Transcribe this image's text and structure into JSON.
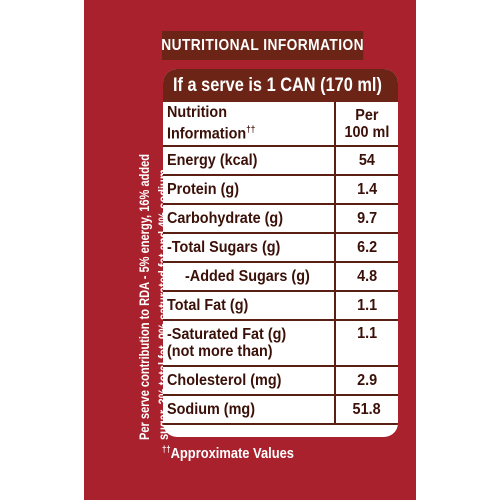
{
  "banner": "NUTRITIONAL INFORMATION",
  "side_text": {
    "line1": "Per serve contribution to RDA - 5% energy, 16% added",
    "line2": "sugar, 3% total fat, 9% saturated fat and 4% sodium"
  },
  "serve_line": "If a serve is 1 CAN (170 ml)",
  "table": {
    "header": {
      "col1_line1": "Nutrition",
      "col1_line2": "Information",
      "col1_mark": "††",
      "col2_line1": "Per",
      "col2_line2": "100 ml"
    },
    "rows": [
      {
        "label": "Energy (kcal)",
        "value": "54"
      },
      {
        "label": "Protein (g)",
        "value": "1.4"
      },
      {
        "label": "Carbohydrate (g)",
        "value": "9.7"
      },
      {
        "label": "-Total Sugars (g)",
        "value": "6.2"
      },
      {
        "label": "-Added Sugars (g)",
        "value": "4.8"
      },
      {
        "label": "Total Fat (g)",
        "value": "1.1"
      },
      {
        "label": "-Saturated Fat (g)",
        "label2": "(not more than)",
        "value": "1.1"
      },
      {
        "label": "Cholesterol (mg)",
        "value": "2.9"
      },
      {
        "label": "Sodium (mg)",
        "value": "51.8"
      }
    ]
  },
  "footnote": {
    "mark": "††",
    "text": "Approximate Values"
  },
  "colors": {
    "label_red": "#a8212c",
    "dark_brown": "#6b2416",
    "border_brown": "#5a1e12"
  }
}
